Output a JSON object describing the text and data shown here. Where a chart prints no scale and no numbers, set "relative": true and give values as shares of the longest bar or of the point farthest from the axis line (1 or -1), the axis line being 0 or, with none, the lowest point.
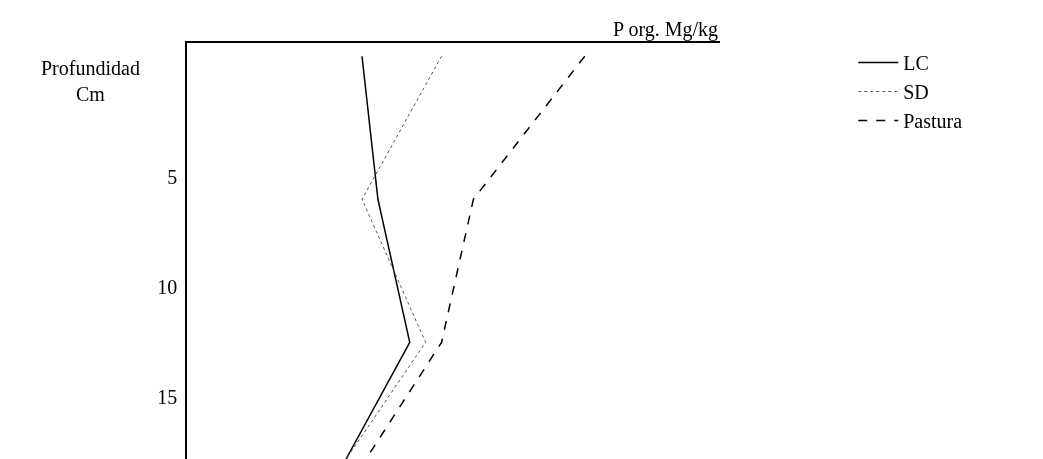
{
  "chart_data": {
    "type": "line",
    "relative": true,
    "orientation": "horizontal",
    "xlabel": "P org. Mg/kg",
    "ylabel": "Profundidad\nCm",
    "x": [
      -0.5,
      6,
      12.5,
      17.8
    ],
    "ylim": [
      17.8,
      -1.1
    ],
    "yticks": [
      5,
      10,
      15
    ],
    "grid": false,
    "legend": "top right",
    "marker": "none",
    "series": [
      {
        "name": "LC",
        "color": "#000000",
        "line_style": "solid",
        "values": [
          0.44,
          0.48,
          0.56,
          0.4
        ]
      },
      {
        "name": "SD",
        "color": "#555555",
        "line_style": "dotted",
        "values": [
          0.64,
          0.44,
          0.6,
          0.4
        ]
      },
      {
        "name": "Pastura",
        "color": "#000000",
        "line_style": "dashed",
        "values": [
          1,
          0.72,
          0.64,
          0.45
        ]
      }
    ]
  }
}
